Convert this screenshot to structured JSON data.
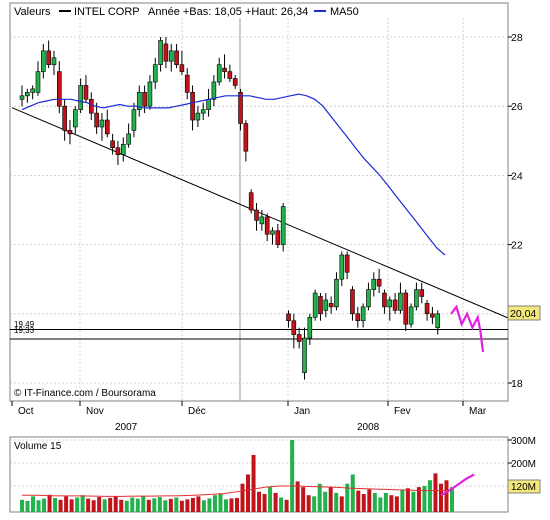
{
  "legend": {
    "label": "Valeurs",
    "series_name": "INTEL CORP",
    "stats": "Année +Bas: 18,05 +Haut: 26,34",
    "ma_name": "MA50"
  },
  "credit": "© IT-Finance.com / Boursorama",
  "last_price": "20,04",
  "level_labels": [
    "19,49",
    "19,33"
  ],
  "volume_title": "Volume 15",
  "volume_last": "120M",
  "colors": {
    "up": "#22b14c",
    "down": "#c0141a",
    "ma": "#1a2bd6",
    "projection": "#e020e0",
    "volume_avg": "#e03030",
    "grid": "#c8c8c8"
  },
  "chart_data": [
    {
      "type": "candlestick",
      "title": "INTEL CORP",
      "ylim": [
        17.7,
        28.6
      ],
      "yticks": [
        18,
        20,
        22,
        24,
        26,
        28
      ],
      "xticks": [
        "Oct",
        "Nov",
        "Dec",
        "Jan",
        "Feb",
        "Mar"
      ],
      "xtick_labels": [
        "Oct",
        "Nov",
        "Déc",
        "Jan",
        "Fev",
        "Mar"
      ],
      "year_labels": [
        "2007",
        "2008"
      ],
      "grid": true,
      "candles": [
        {
          "o": 26.2,
          "h": 26.6,
          "l": 26.0,
          "c": 26.3
        },
        {
          "o": 26.3,
          "h": 26.5,
          "l": 26.1,
          "c": 26.4
        },
        {
          "o": 26.4,
          "h": 26.6,
          "l": 26.2,
          "c": 26.5
        },
        {
          "o": 26.4,
          "h": 27.3,
          "l": 26.3,
          "c": 27.0
        },
        {
          "o": 27.0,
          "h": 27.8,
          "l": 26.8,
          "c": 27.6
        },
        {
          "o": 27.6,
          "h": 27.9,
          "l": 27.1,
          "c": 27.2
        },
        {
          "o": 27.2,
          "h": 27.6,
          "l": 26.9,
          "c": 27.4
        },
        {
          "o": 27.0,
          "h": 27.3,
          "l": 25.8,
          "c": 26.0
        },
        {
          "o": 26.0,
          "h": 26.2,
          "l": 25.0,
          "c": 25.3
        },
        {
          "o": 25.3,
          "h": 25.6,
          "l": 24.9,
          "c": 25.2
        },
        {
          "o": 25.4,
          "h": 26.0,
          "l": 25.2,
          "c": 25.9
        },
        {
          "o": 25.9,
          "h": 26.8,
          "l": 25.8,
          "c": 26.6
        },
        {
          "o": 26.6,
          "h": 26.9,
          "l": 26.1,
          "c": 26.2
        },
        {
          "o": 26.2,
          "h": 26.4,
          "l": 25.6,
          "c": 25.8
        },
        {
          "o": 25.8,
          "h": 26.1,
          "l": 25.2,
          "c": 25.4
        },
        {
          "o": 25.4,
          "h": 25.8,
          "l": 25.0,
          "c": 25.6
        },
        {
          "o": 25.6,
          "h": 25.9,
          "l": 25.1,
          "c": 25.2
        },
        {
          "o": 25.0,
          "h": 25.2,
          "l": 24.6,
          "c": 24.8
        },
        {
          "o": 24.8,
          "h": 25.0,
          "l": 24.3,
          "c": 24.6
        },
        {
          "o": 24.6,
          "h": 25.1,
          "l": 24.4,
          "c": 24.9
        },
        {
          "o": 24.9,
          "h": 25.5,
          "l": 24.8,
          "c": 25.2
        },
        {
          "o": 25.3,
          "h": 26.1,
          "l": 25.1,
          "c": 25.9
        },
        {
          "o": 25.9,
          "h": 26.6,
          "l": 25.7,
          "c": 26.4
        },
        {
          "o": 26.4,
          "h": 26.6,
          "l": 25.8,
          "c": 26.0
        },
        {
          "o": 26.0,
          "h": 26.9,
          "l": 25.9,
          "c": 26.7
        },
        {
          "o": 26.7,
          "h": 27.4,
          "l": 26.5,
          "c": 27.2
        },
        {
          "o": 27.2,
          "h": 28.0,
          "l": 27.0,
          "c": 27.9
        },
        {
          "o": 27.8,
          "h": 28.0,
          "l": 27.1,
          "c": 27.3
        },
        {
          "o": 27.3,
          "h": 27.8,
          "l": 27.0,
          "c": 27.6
        },
        {
          "o": 27.6,
          "h": 27.8,
          "l": 27.1,
          "c": 27.2
        },
        {
          "o": 27.2,
          "h": 27.6,
          "l": 26.9,
          "c": 27.0
        },
        {
          "o": 26.9,
          "h": 27.1,
          "l": 26.2,
          "c": 26.4
        },
        {
          "o": 26.4,
          "h": 26.6,
          "l": 25.3,
          "c": 25.6
        },
        {
          "o": 25.6,
          "h": 26.0,
          "l": 25.4,
          "c": 25.8
        },
        {
          "o": 25.8,
          "h": 26.1,
          "l": 25.6,
          "c": 25.9
        },
        {
          "o": 25.9,
          "h": 26.5,
          "l": 25.7,
          "c": 26.2
        },
        {
          "o": 26.2,
          "h": 26.9,
          "l": 26.0,
          "c": 26.7
        },
        {
          "o": 26.7,
          "h": 27.4,
          "l": 26.6,
          "c": 27.2
        },
        {
          "o": 27.1,
          "h": 27.5,
          "l": 26.8,
          "c": 27.0
        },
        {
          "o": 27.0,
          "h": 27.2,
          "l": 26.7,
          "c": 26.8
        },
        {
          "o": 26.8,
          "h": 26.9,
          "l": 26.5,
          "c": 26.6
        },
        {
          "o": 26.4,
          "h": 26.5,
          "l": 25.3,
          "c": 25.5
        },
        {
          "o": 25.5,
          "h": 25.6,
          "l": 24.4,
          "c": 24.7
        },
        {
          "o": 23.5,
          "h": 23.6,
          "l": 22.9,
          "c": 23.0
        },
        {
          "o": 23.0,
          "h": 23.2,
          "l": 22.4,
          "c": 22.7
        },
        {
          "o": 22.6,
          "h": 23.0,
          "l": 22.4,
          "c": 22.8
        },
        {
          "o": 22.8,
          "h": 22.9,
          "l": 22.1,
          "c": 22.3
        },
        {
          "o": 22.3,
          "h": 22.5,
          "l": 22.0,
          "c": 22.4
        },
        {
          "o": 22.4,
          "h": 22.6,
          "l": 21.9,
          "c": 22.0
        },
        {
          "o": 22.0,
          "h": 23.2,
          "l": 21.8,
          "c": 23.1
        },
        {
          "o": 20.0,
          "h": 20.1,
          "l": 19.6,
          "c": 19.8
        },
        {
          "o": 19.8,
          "h": 20.0,
          "l": 19.0,
          "c": 19.4
        },
        {
          "o": 19.4,
          "h": 19.6,
          "l": 19.0,
          "c": 19.2
        },
        {
          "o": 18.3,
          "h": 19.6,
          "l": 18.1,
          "c": 19.3
        },
        {
          "o": 19.3,
          "h": 20.0,
          "l": 19.1,
          "c": 19.9
        },
        {
          "o": 19.9,
          "h": 20.7,
          "l": 19.8,
          "c": 20.6
        },
        {
          "o": 20.5,
          "h": 20.6,
          "l": 19.8,
          "c": 20.0
        },
        {
          "o": 20.1,
          "h": 20.6,
          "l": 19.9,
          "c": 20.4
        },
        {
          "o": 20.3,
          "h": 20.5,
          "l": 20.0,
          "c": 20.2
        },
        {
          "o": 20.2,
          "h": 21.2,
          "l": 20.1,
          "c": 21.0
        },
        {
          "o": 21.0,
          "h": 21.8,
          "l": 20.8,
          "c": 21.7
        },
        {
          "o": 21.7,
          "h": 21.8,
          "l": 21.0,
          "c": 21.2
        },
        {
          "o": 20.7,
          "h": 20.8,
          "l": 19.8,
          "c": 20.0
        },
        {
          "o": 20.0,
          "h": 20.2,
          "l": 19.6,
          "c": 19.8
        },
        {
          "o": 19.8,
          "h": 20.3,
          "l": 19.6,
          "c": 20.2
        },
        {
          "o": 20.2,
          "h": 20.9,
          "l": 20.1,
          "c": 20.7
        },
        {
          "o": 20.7,
          "h": 21.2,
          "l": 20.5,
          "c": 21.0
        },
        {
          "o": 21.0,
          "h": 21.3,
          "l": 20.6,
          "c": 20.8
        },
        {
          "o": 20.6,
          "h": 20.7,
          "l": 20.0,
          "c": 20.2
        },
        {
          "o": 20.2,
          "h": 20.5,
          "l": 19.8,
          "c": 20.4
        },
        {
          "o": 20.4,
          "h": 20.6,
          "l": 20.0,
          "c": 20.1
        },
        {
          "o": 20.1,
          "h": 20.9,
          "l": 20.0,
          "c": 20.6
        },
        {
          "o": 20.6,
          "h": 20.7,
          "l": 19.5,
          "c": 19.7
        },
        {
          "o": 19.7,
          "h": 20.3,
          "l": 19.6,
          "c": 20.2
        },
        {
          "o": 20.2,
          "h": 20.9,
          "l": 20.1,
          "c": 20.7
        },
        {
          "o": 20.7,
          "h": 20.9,
          "l": 20.3,
          "c": 20.5
        },
        {
          "o": 20.3,
          "h": 20.4,
          "l": 19.8,
          "c": 20.0
        },
        {
          "o": 20.0,
          "h": 20.2,
          "l": 19.7,
          "c": 19.9
        },
        {
          "o": 19.6,
          "h": 20.1,
          "l": 19.4,
          "c": 20.0
        }
      ],
      "ma50": [
        25.9,
        26.0,
        26.1,
        26.15,
        26.2,
        26.2,
        26.2,
        26.15,
        26.1,
        26.0,
        25.95,
        26.0,
        26.05,
        26.0,
        26.0,
        25.95,
        25.95,
        25.95,
        25.95,
        26.0,
        26.05,
        26.1,
        26.15,
        26.2,
        26.25,
        26.3,
        26.3,
        26.3,
        26.3,
        26.25,
        26.2,
        26.2,
        26.25,
        26.3,
        26.35,
        26.3,
        26.2,
        26.0,
        25.7,
        25.4,
        25.1,
        24.8,
        24.5,
        24.25,
        24.0,
        23.7,
        23.4,
        23.1,
        22.8,
        22.5,
        22.2,
        21.9,
        21.7
      ],
      "trendline": [
        [
          0,
          25.9
        ],
        [
          86,
          19.96
        ]
      ],
      "support_levels": [
        19.49,
        19.33
      ],
      "projection": [
        [
          80.5,
          20.0
        ],
        [
          81.5,
          20.2
        ],
        [
          82.5,
          19.7
        ],
        [
          83.5,
          20.0
        ],
        [
          84.5,
          19.6
        ],
        [
          85.5,
          19.9
        ],
        [
          86,
          19.5
        ],
        [
          86.5,
          18.9
        ]
      ]
    },
    {
      "type": "bar",
      "title": "Volume 15",
      "ylim": [
        0,
        330
      ],
      "yticks": [
        "300M",
        "200M",
        "100M"
      ],
      "values": [
        40,
        35,
        55,
        38,
        45,
        62,
        48,
        40,
        55,
        42,
        50,
        60,
        45,
        38,
        52,
        42,
        48,
        55,
        40,
        36,
        50,
        45,
        58,
        40,
        46,
        52,
        38,
        44,
        50,
        36,
        42,
        48,
        55,
        38,
        46,
        60,
        68,
        42,
        46,
        48,
        110,
        150,
        235,
        75,
        65,
        95,
        70,
        50,
        40,
        300,
        120,
        95,
        60,
        55,
        110,
        75,
        95,
        70,
        55,
        110,
        150,
        80,
        65,
        85,
        70,
        50,
        70,
        60,
        55,
        85,
        90,
        75,
        95,
        100,
        125,
        155,
        110,
        125,
        95
      ],
      "average": [
        60,
        60,
        58,
        57,
        57,
        56,
        55,
        55,
        56,
        56,
        57,
        58,
        60,
        63,
        66,
        75,
        85,
        95,
        100,
        100,
        98,
        96,
        94,
        90,
        88,
        86,
        84,
        82,
        80,
        80,
        80
      ],
      "projection": [
        [
          76,
          60
        ],
        [
          77.5,
          80
        ],
        [
          79,
          105
        ],
        [
          80.5,
          130
        ],
        [
          82,
          150
        ]
      ]
    }
  ]
}
